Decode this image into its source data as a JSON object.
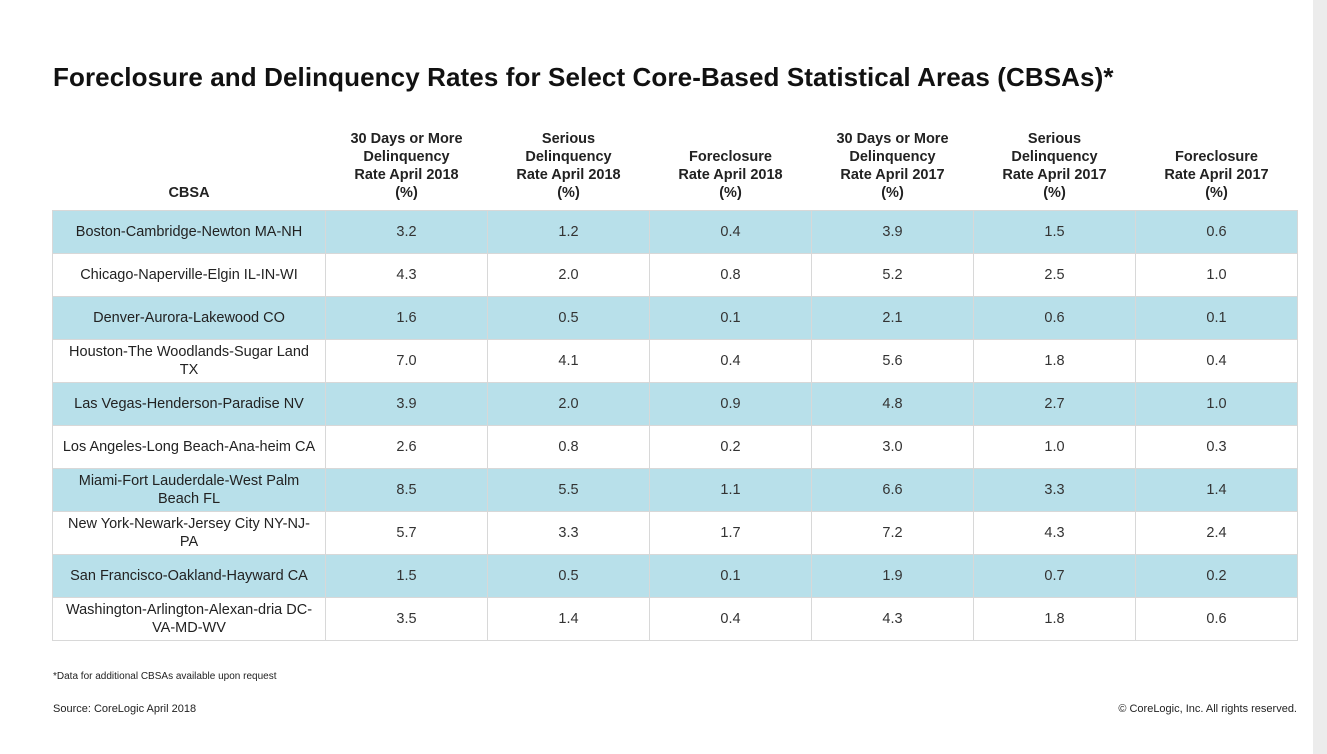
{
  "title": "Foreclosure and Delinquency Rates for Select Core-Based Statistical Areas (CBSAs)*",
  "table": {
    "headers": [
      "CBSA",
      "30 Days or More\nDelinquency\nRate April 2018\n(%)",
      "Serious\nDelinquency\nRate April 2018\n(%)",
      "Foreclosure\nRate April 2018\n(%)",
      "30 Days or More\nDelinquency\nRate April 2017\n(%)",
      "Serious\nDelinquency\nRate April 2017\n(%)",
      "Foreclosure\nRate April 2017\n(%)"
    ],
    "rows": [
      [
        "Boston-Cambridge-Newton MA-NH",
        "3.2",
        "1.2",
        "0.4",
        "3.9",
        "1.5",
        "0.6"
      ],
      [
        "Chicago-Naperville-Elgin IL-IN-WI",
        "4.3",
        "2.0",
        "0.8",
        "5.2",
        "2.5",
        "1.0"
      ],
      [
        "Denver-Aurora-Lakewood CO",
        "1.6",
        "0.5",
        "0.1",
        "2.1",
        "0.6",
        "0.1"
      ],
      [
        "Houston-The Woodlands-Sugar Land TX",
        "7.0",
        "4.1",
        "0.4",
        "5.6",
        "1.8",
        "0.4"
      ],
      [
        "Las Vegas-Henderson-Paradise NV",
        "3.9",
        "2.0",
        "0.9",
        "4.8",
        "2.7",
        "1.0"
      ],
      [
        "Los Angeles-Long Beach-Ana-heim CA",
        "2.6",
        "0.8",
        "0.2",
        "3.0",
        "1.0",
        "0.3"
      ],
      [
        "Miami-Fort Lauderdale-West Palm Beach FL",
        "8.5",
        "5.5",
        "1.1",
        "6.6",
        "3.3",
        "1.4"
      ],
      [
        "New York-Newark-Jersey City NY-NJ-PA",
        "5.7",
        "3.3",
        "1.7",
        "7.2",
        "4.3",
        "2.4"
      ],
      [
        "San Francisco-Oakland-Hayward CA",
        "1.5",
        "0.5",
        "0.1",
        "1.9",
        "0.7",
        "0.2"
      ],
      [
        "Washington-Arlington-Alexan-dria DC-VA-MD-WV",
        "3.5",
        "1.4",
        "0.4",
        "4.3",
        "1.8",
        "0.6"
      ]
    ]
  },
  "footnote": "*Data for additional CBSAs available upon request",
  "source": "Source: CoreLogic April 2018",
  "copyright": "© CoreLogic, Inc. All rights reserved.",
  "colors": {
    "row_shaded": "#b8e0ea",
    "row_plain": "#ffffff"
  }
}
